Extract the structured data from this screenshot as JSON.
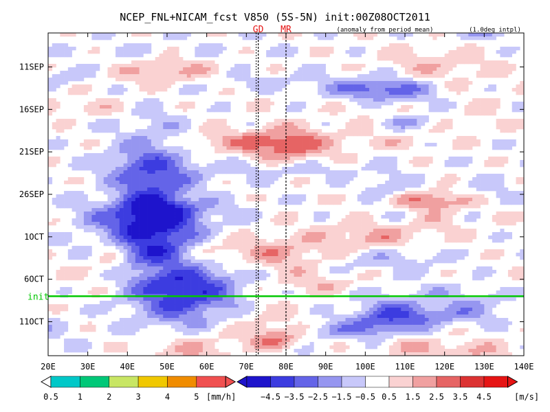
{
  "chart_data": {
    "type": "heatmap",
    "title": "NCEP_FNL+NICAM_fcst V850 (5S-5N) init:00Z08OCT2011",
    "subtitle": "(anomaly from period mean)",
    "note": "(1.0deg intpl)",
    "xlabel": "",
    "ylabel": "",
    "x_ticks": [
      "20E",
      "30E",
      "40E",
      "50E",
      "60E",
      "70E",
      "80E",
      "90E",
      "100E",
      "110E",
      "120E",
      "130E",
      "140E"
    ],
    "x_range": [
      20,
      140
    ],
    "y_ticks": [
      "11SEP",
      "16SEP",
      "21SEP",
      "26SEP",
      "1OCT",
      "6OCT",
      "11OCT"
    ],
    "y_range": [
      "7SEP2011",
      "15OCT2011"
    ],
    "markers": [
      {
        "label": "GD",
        "lon": 73
      },
      {
        "label": "MR",
        "lon": 80
      }
    ],
    "init_line": {
      "label": "init",
      "date": "8OCT2011"
    },
    "wind_levels": [
      -4.5,
      -3.5,
      -2.5,
      -1.5,
      -0.5,
      0.5,
      1.5,
      2.5,
      3.5,
      4.5
    ],
    "wind_unit": "[m/s]",
    "precip_levels": [
      0.5,
      1,
      2,
      3,
      4,
      5
    ],
    "precip_unit": "[mm/h]",
    "colors": {
      "neg": [
        "#1e14cc",
        "#3c3ce0",
        "#6464e8",
        "#9696f0",
        "#c8c8fa"
      ],
      "pos": [
        "#fad2d2",
        "#f0a0a0",
        "#e66464",
        "#dc3232",
        "#e61414"
      ],
      "precip": [
        "#00c8c8",
        "#00c878",
        "#c8e664",
        "#f0c800",
        "#f08c00",
        "#f05050"
      ],
      "init": "#00c800"
    }
  }
}
